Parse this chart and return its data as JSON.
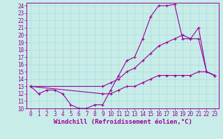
{
  "xlabel": "Windchill (Refroidissement éolien,°C)",
  "ylim": [
    10,
    24.4
  ],
  "xlim": [
    -0.5,
    23.5
  ],
  "yticks": [
    10,
    11,
    12,
    13,
    14,
    15,
    16,
    17,
    18,
    19,
    20,
    21,
    22,
    23,
    24
  ],
  "xticks": [
    0,
    1,
    2,
    3,
    4,
    5,
    6,
    7,
    8,
    9,
    10,
    11,
    12,
    13,
    14,
    15,
    16,
    17,
    18,
    19,
    20,
    21,
    22,
    23
  ],
  "bg_color": "#c8ece8",
  "line_color": "#990099",
  "grid_color": "#aadddd",
  "line1_x": [
    0,
    1,
    2,
    3,
    4,
    5,
    6,
    7,
    8,
    9,
    10,
    11,
    12,
    13,
    14,
    15,
    16,
    17,
    18,
    19,
    20,
    21,
    22,
    23
  ],
  "line1_y": [
    13,
    12,
    12.5,
    12.5,
    12,
    10.5,
    10,
    10,
    10.5,
    10.5,
    12.5,
    14.5,
    16.5,
    17,
    19.5,
    22.5,
    24,
    24,
    24.2,
    19.5,
    19.5,
    21,
    15,
    14.5
  ],
  "line2_x": [
    0,
    9,
    10,
    11,
    12,
    13,
    14,
    15,
    16,
    17,
    18,
    19,
    20,
    21,
    22,
    23
  ],
  "line2_y": [
    13,
    13,
    13.5,
    14,
    15,
    15.5,
    16.5,
    17.5,
    18.5,
    19,
    19.5,
    20,
    19.5,
    19.5,
    15,
    14.5
  ],
  "line3_x": [
    0,
    9,
    10,
    11,
    12,
    13,
    14,
    15,
    16,
    17,
    18,
    19,
    20,
    21,
    22,
    23
  ],
  "line3_y": [
    13,
    12,
    12,
    12.5,
    13,
    13,
    13.5,
    14,
    14.5,
    14.5,
    14.5,
    14.5,
    14.5,
    15,
    15,
    14.5
  ],
  "marker": "+",
  "markersize": 3,
  "linewidth": 0.8,
  "tick_fontsize": 5.5,
  "label_fontsize": 6.5
}
